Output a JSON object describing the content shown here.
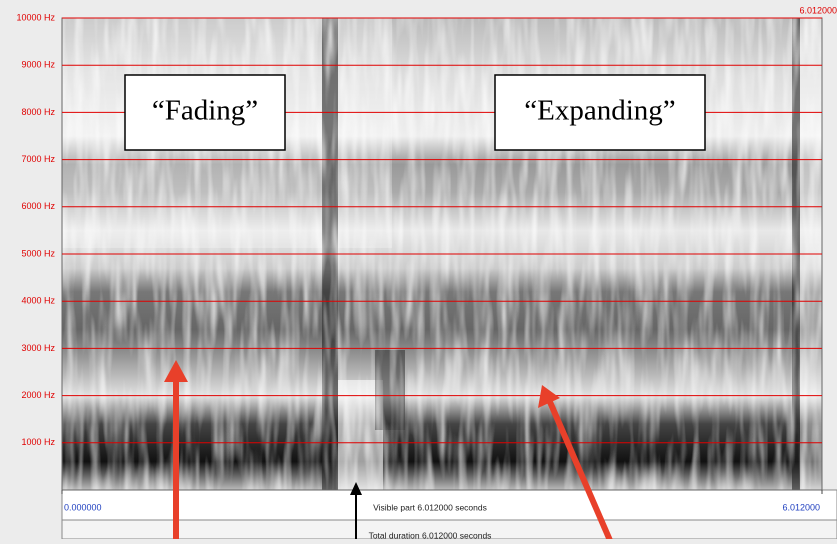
{
  "chart_data": {
    "type": "spectrogram",
    "ylim": [
      0,
      10000
    ],
    "yticks": [
      {
        "value": 1000,
        "label": "1000 Hz"
      },
      {
        "value": 2000,
        "label": "2000 Hz"
      },
      {
        "value": 3000,
        "label": "3000 Hz"
      },
      {
        "value": 4000,
        "label": "4000 Hz"
      },
      {
        "value": 5000,
        "label": "5000 Hz"
      },
      {
        "value": 6000,
        "label": "6000 Hz"
      },
      {
        "value": 7000,
        "label": "7000 Hz"
      },
      {
        "value": 8000,
        "label": "8000 Hz"
      },
      {
        "value": 9000,
        "label": "9000 Hz"
      },
      {
        "value": 10000,
        "label": "10000 Hz"
      }
    ],
    "xlim": [
      0,
      6.012
    ],
    "xticks": [
      {
        "value": 0,
        "label": "0.000000"
      },
      {
        "value": 6.012,
        "label": "6.012000"
      }
    ],
    "grid": true,
    "grid_color": "#e00000",
    "annotations": [
      "“Fading”",
      "“Expanding”"
    ],
    "visible_part": "Visible part 6.012000 seconds",
    "total_duration": "Total duration 6.012000 seconds"
  }
}
